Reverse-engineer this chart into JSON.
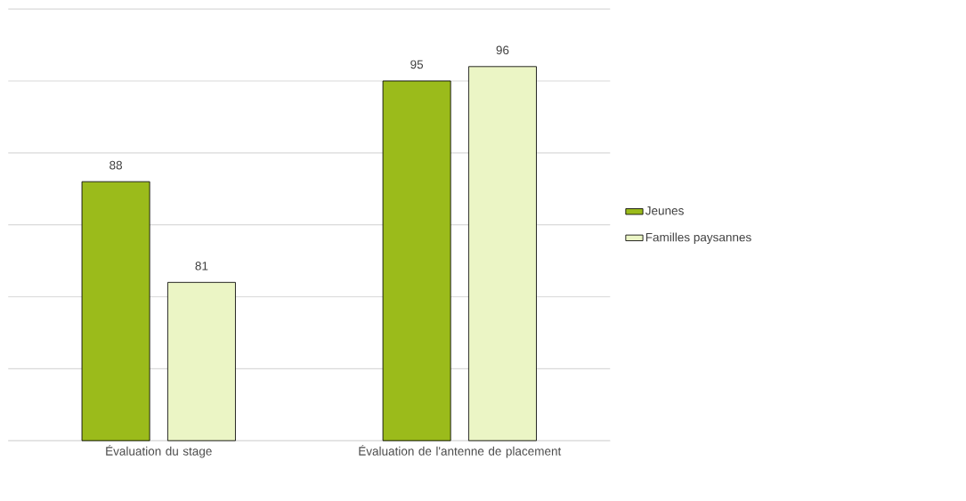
{
  "chart_data": {
    "type": "bar",
    "categories": [
      "Évaluation du stage",
      "Évaluation de l'antenne de placement"
    ],
    "series": [
      {
        "name": "Jeunes",
        "color": "#9bbb1b",
        "values": [
          88,
          95
        ]
      },
      {
        "name": "Familles paysannes",
        "color": "#ebf5c5",
        "values": [
          81,
          96
        ]
      }
    ],
    "ylim": [
      70,
      100
    ],
    "yticks": [
      {
        "value": 70,
        "label": null
      },
      {
        "value": 75,
        "label": null
      },
      {
        "value": 80,
        "label": null
      },
      {
        "value": 85,
        "label": null
      },
      {
        "value": 90,
        "label": null
      },
      {
        "value": 95,
        "label": null
      },
      {
        "value": 100,
        "label": null
      }
    ],
    "tick_labels": "x",
    "grid": "y",
    "data_labels": true,
    "legend": "right"
  }
}
